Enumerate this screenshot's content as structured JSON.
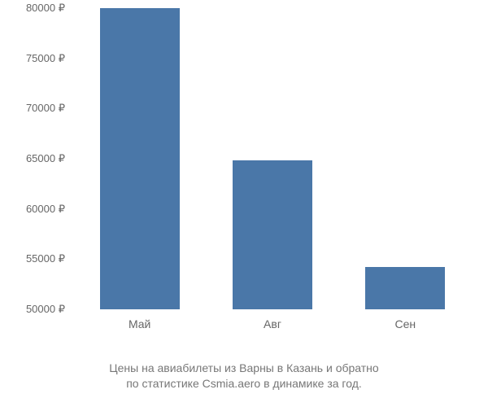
{
  "chart": {
    "type": "bar",
    "categories": [
      "Май",
      "Авг",
      "Сен"
    ],
    "values": [
      80000,
      64800,
      54200
    ],
    "bar_color": "#4a77a8",
    "background_color": "#ffffff",
    "ylim": [
      50000,
      80000
    ],
    "ytick_step": 5000,
    "y_ticks": [
      50000,
      55000,
      60000,
      65000,
      70000,
      75000,
      80000
    ],
    "y_tick_labels": [
      "50000 ₽",
      "55000 ₽",
      "60000 ₽",
      "65000 ₽",
      "70000 ₽",
      "75000 ₽",
      "80000 ₽"
    ],
    "bar_width_ratio": 0.6,
    "title_fontsize": 14,
    "label_fontsize": 14,
    "tick_fontsize": 13,
    "tick_color": "#666666"
  },
  "caption": {
    "line1": "Цены на авиабилеты из Варны в Казань и обратно",
    "line2": "по статистике Csmia.aero в динамике за год."
  }
}
